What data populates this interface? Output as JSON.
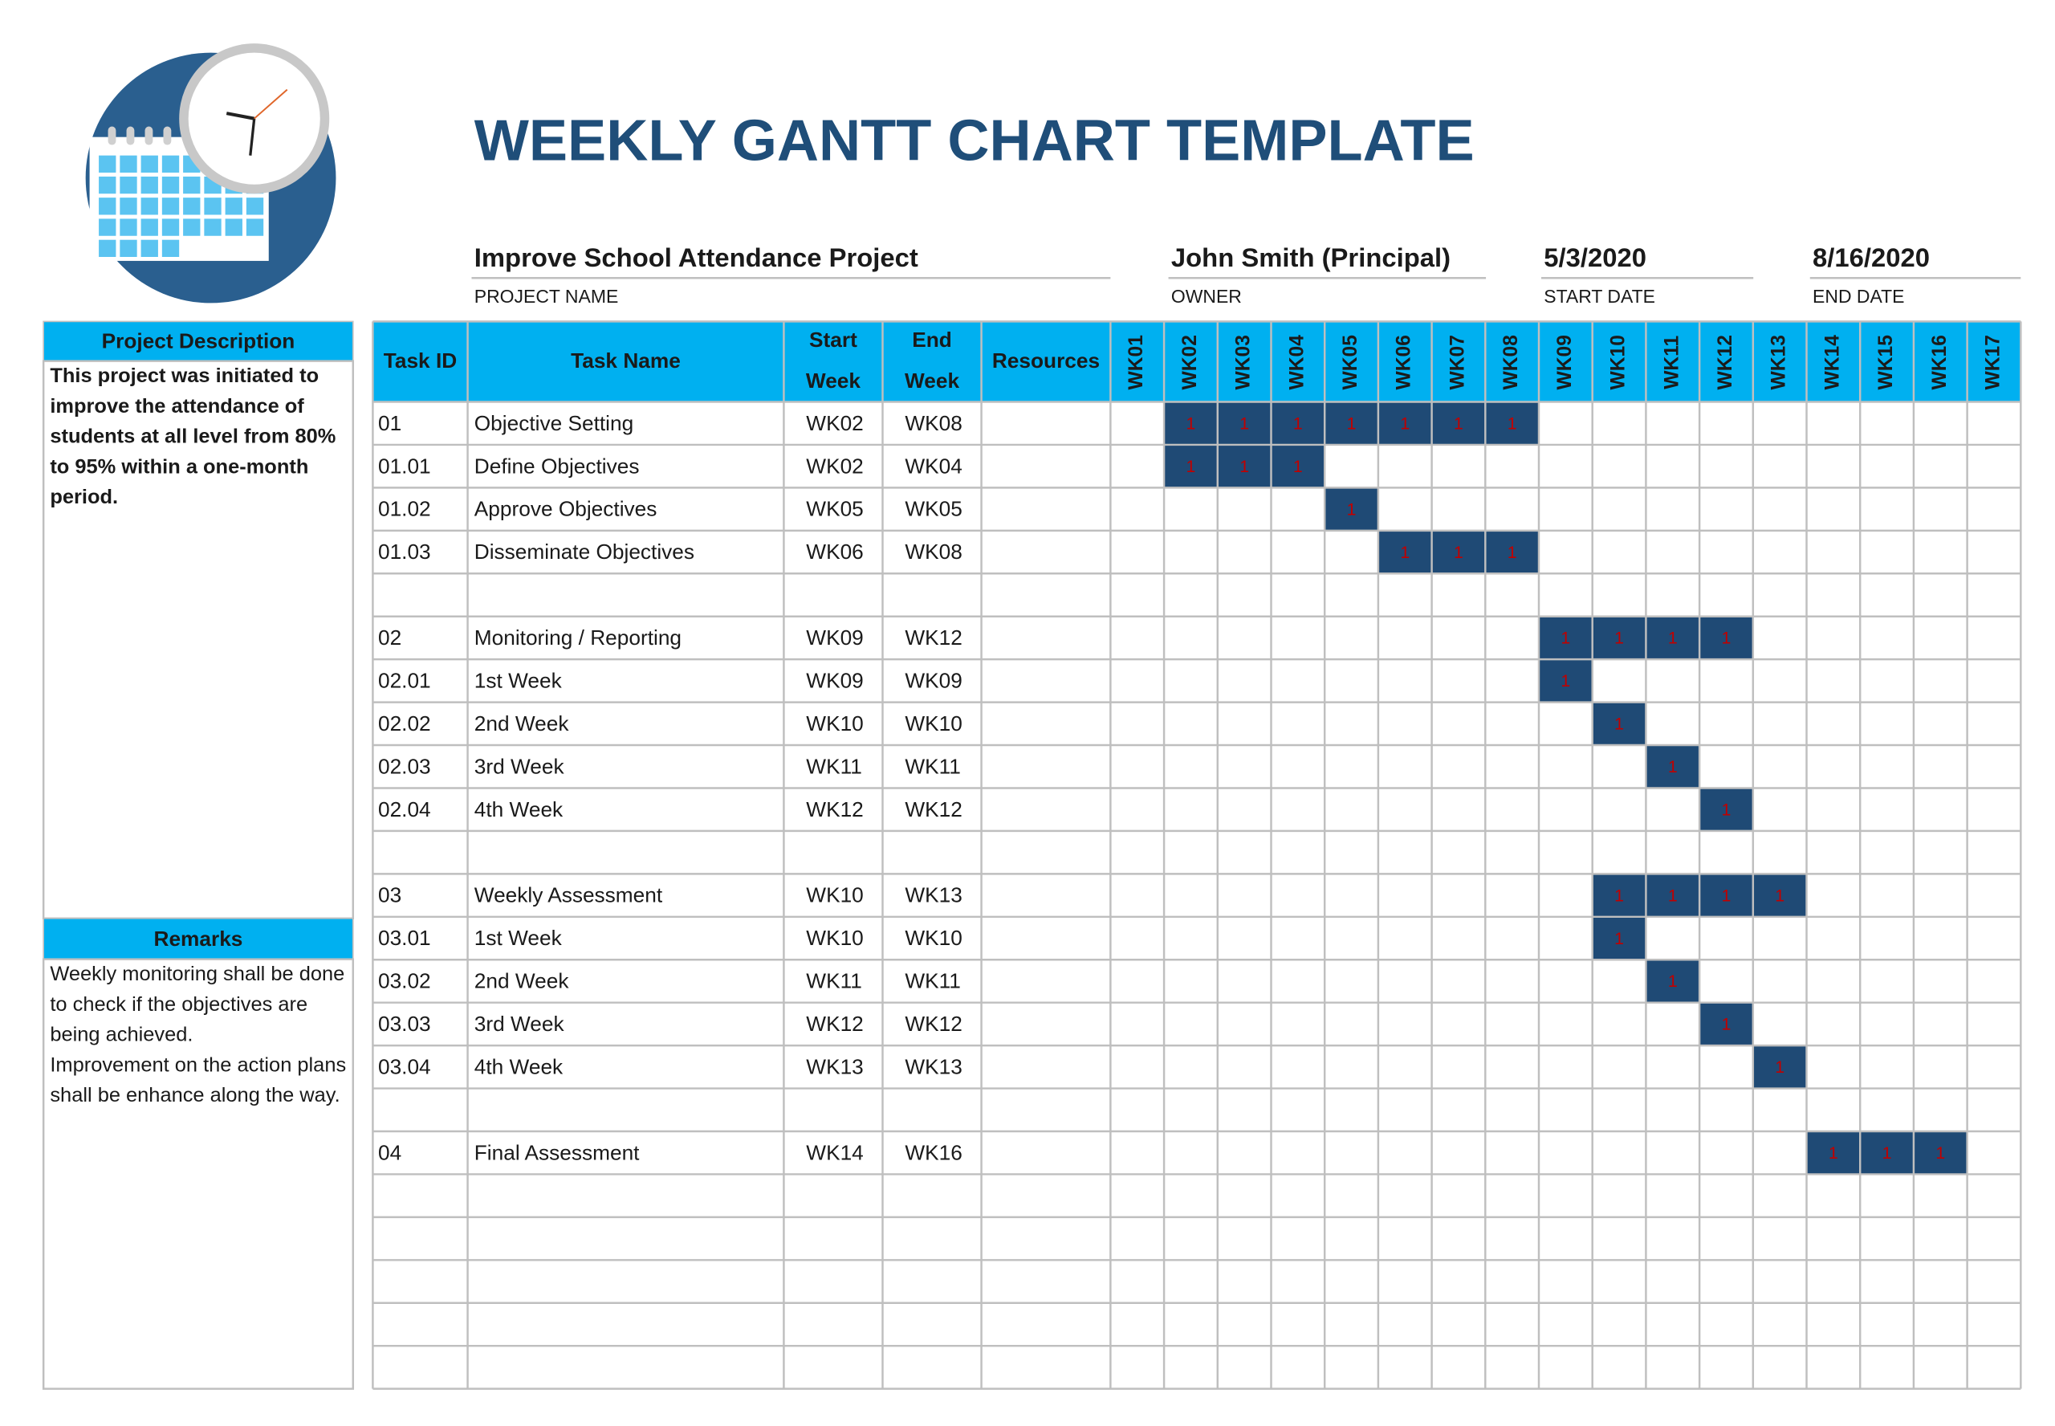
{
  "header": {
    "title": "WEEKLY GANTT CHART TEMPLATE"
  },
  "project": {
    "fields": [
      {
        "value": "Improve School Attendance Project",
        "label": "PROJECT NAME"
      },
      {
        "value": "John Smith (Principal)",
        "label": "OWNER"
      },
      {
        "value": "5/3/2020",
        "label": "START DATE"
      },
      {
        "value": "8/16/2020",
        "label": "END DATE"
      }
    ]
  },
  "description": {
    "title": "Project Description",
    "lines": [
      "This project was initiated to",
      "improve the attendance of",
      "students at all level from 80%",
      "to 95% within a one-month",
      "period."
    ]
  },
  "remarks": {
    "title": "Remarks",
    "lines": [
      "Weekly monitoring shall be done",
      "to check if the objectives are",
      "being achieved.",
      "Improvement on the action plans",
      "shall be enhance along the way."
    ]
  },
  "table": {
    "columns": {
      "task_id": "Task ID",
      "task_name": "Task Name",
      "start": [
        "Start",
        "Week"
      ],
      "end": [
        "End",
        "Week"
      ],
      "resources": "Resources"
    },
    "weeks": [
      "WK01",
      "WK02",
      "WK03",
      "WK04",
      "WK05",
      "WK06",
      "WK07",
      "WK08",
      "WK09",
      "WK10",
      "WK11",
      "WK12",
      "WK13",
      "WK14",
      "WK15",
      "WK16",
      "WK17"
    ],
    "groups": [
      {
        "tasks": [
          {
            "id": "01",
            "name": "Objective Setting",
            "start": "WK02",
            "end": "WK08",
            "cells": [
              1,
              1,
              1,
              1,
              1,
              1,
              1
            ]
          },
          {
            "id": "01.01",
            "name": "Define Objectives",
            "start": "WK02",
            "end": "WK04",
            "cells": [
              1,
              1,
              1
            ]
          },
          {
            "id": "01.02",
            "name": "Approve Objectives",
            "start": "WK05",
            "end": "WK05",
            "cells": [
              1
            ]
          },
          {
            "id": "01.03",
            "name": "Disseminate Objectives",
            "start": "WK06",
            "end": "WK08",
            "cells": [
              1,
              1,
              1
            ]
          }
        ]
      },
      {
        "tasks": [
          {
            "id": "02",
            "name": "Monitoring / Reporting",
            "start": "WK09",
            "end": "WK12",
            "cells": [
              1,
              1,
              1,
              1
            ]
          },
          {
            "id": "02.01",
            "name": "1st Week",
            "start": "WK09",
            "end": "WK09",
            "cells": [
              1
            ]
          },
          {
            "id": "02.02",
            "name": "2nd Week",
            "start": "WK10",
            "end": "WK10",
            "cells": [
              1
            ]
          },
          {
            "id": "02.03",
            "name": "3rd Week",
            "start": "WK11",
            "end": "WK11",
            "cells": [
              1
            ]
          },
          {
            "id": "02.04",
            "name": "4th Week",
            "start": "WK12",
            "end": "WK12",
            "cells": [
              1
            ]
          }
        ]
      },
      {
        "tasks": [
          {
            "id": "03",
            "name": "Weekly Assessment",
            "start": "WK10",
            "end": "WK13",
            "cells": [
              1,
              1,
              1,
              1
            ]
          },
          {
            "id": "03.01",
            "name": "1st Week",
            "start": "WK10",
            "end": "WK10",
            "cells": [
              1
            ]
          },
          {
            "id": "03.02",
            "name": "2nd Week",
            "start": "WK11",
            "end": "WK11",
            "cells": [
              1
            ]
          },
          {
            "id": "03.03",
            "name": "3rd Week",
            "start": "WK12",
            "end": "WK12",
            "cells": [
              1
            ]
          },
          {
            "id": "03.04",
            "name": "4th Week",
            "start": "WK13",
            "end": "WK13",
            "cells": [
              1
            ]
          }
        ]
      },
      {
        "tasks": [
          {
            "id": "04",
            "name": "Final Assessment",
            "start": "WK14",
            "end": "WK16",
            "cells": [
              1,
              1,
              1
            ]
          }
        ]
      }
    ]
  }
}
